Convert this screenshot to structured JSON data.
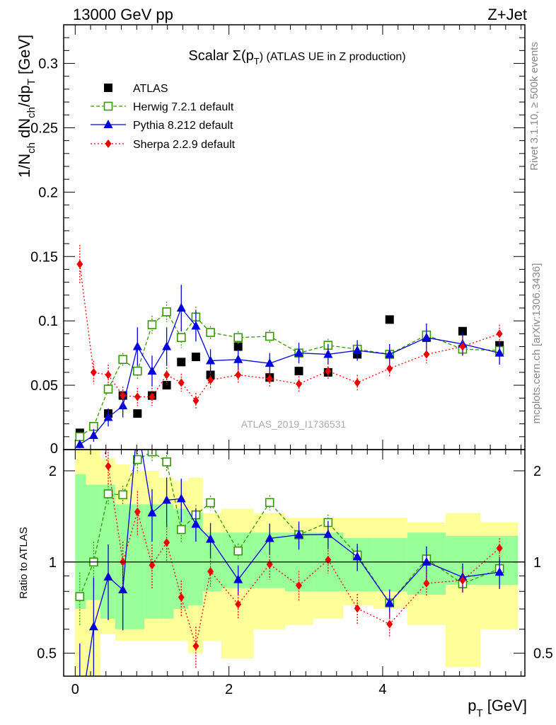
{
  "header": {
    "left": "13000 GeV pp",
    "right": "Z+Jet"
  },
  "side_labels": {
    "rivet": "Rivet 3.1.10, ≥ 500k events",
    "mcplots": "mcplots.cern.ch [arXiv:1306.3436]"
  },
  "watermark": "ATLAS_2019_I1736531",
  "colors": {
    "atlas": "#000000",
    "herwig": "#339900",
    "pythia": "#0000dd",
    "sherpa": "#ee0000",
    "band_inner": "#99ff99",
    "band_outer": "#ffff99"
  },
  "chart_data": {
    "type": "scatter",
    "title": "Scalar Σ(p_T) (ATLAS UE in Z production)",
    "title_parts": {
      "prefix": "Scalar Σ(p",
      "sub": "T",
      "suffix": ") (ATLAS UE in Z production)"
    },
    "xlabel": "p_T [GeV]",
    "xlabel_parts": {
      "prefix": "p",
      "sub": "T",
      "suffix": " [GeV]"
    },
    "ylabel": "1/N_ch dN_ch/dp_T [GeV]",
    "ylabel_parts": [
      {
        "t": "1/N",
        "sub": false
      },
      {
        "t": "ch",
        "sub": true
      },
      {
        "t": " dN",
        "sub": false
      },
      {
        "t": "ch",
        "sub": true
      },
      {
        "t": "/dp",
        "sub": false
      },
      {
        "t": "T",
        "sub": true
      },
      {
        "t": " [GeV]",
        "sub": false
      }
    ],
    "ratio_ylabel": "Ratio to ATLAS",
    "xlim": [
      -0.15,
      5.85
    ],
    "ylim": [
      0,
      0.33
    ],
    "ratio_ylim": [
      0.42,
      2.35
    ],
    "x_major_ticks": [
      0,
      2,
      4
    ],
    "y_major_ticks": [
      0.05,
      0.1,
      0.15,
      0.2,
      0.25,
      0.3
    ],
    "y_tick_labels": [
      "0.05",
      "0.1",
      "0.15",
      "0.2",
      "0.25",
      "0.3"
    ],
    "y_zero_label": "0",
    "ratio_ticks": [
      0.5,
      1,
      2
    ],
    "ratio_tick_labels": [
      "0.5",
      "1",
      "2"
    ],
    "x": [
      0.06,
      0.24,
      0.43,
      0.62,
      0.81,
      1.0,
      1.19,
      1.38,
      1.57,
      1.76,
      2.12,
      2.53,
      2.91,
      3.29,
      3.67,
      4.09,
      4.57,
      5.04,
      5.52
    ],
    "x_edges": [
      0.0,
      0.14,
      0.33,
      0.52,
      0.71,
      0.9,
      1.09,
      1.28,
      1.47,
      1.66,
      1.9,
      2.32,
      2.73,
      3.1,
      3.49,
      3.88,
      4.32,
      4.82,
      5.27,
      5.76
    ],
    "series": [
      {
        "name": "ATLAS",
        "marker": "square",
        "values": [
          0.013,
          0.018,
          0.028,
          0.042,
          0.028,
          0.042,
          0.05,
          0.068,
          0.072,
          0.058,
          0.08,
          0.056,
          0.061,
          0.06,
          0.074,
          0.101,
          0.087,
          0.092,
          0.081
        ]
      },
      {
        "name": "Herwig 7.2.1 default",
        "marker": "open-square",
        "dash": "5,3",
        "values": [
          0.01,
          0.018,
          0.047,
          0.07,
          0.061,
          0.097,
          0.107,
          0.087,
          0.103,
          0.091,
          0.087,
          0.088,
          0.075,
          0.081,
          0.078,
          0.074,
          0.089,
          0.078,
          0.077
        ],
        "errors": [
          0.002,
          0.003,
          0.004,
          0.005,
          0.006,
          0.007,
          0.008,
          0.008,
          0.008,
          0.005,
          0.005,
          0.005,
          0.005,
          0.005,
          0.005,
          0.005,
          0.005,
          0.005,
          0.005
        ]
      },
      {
        "name": "Pythia 8.212 default",
        "marker": "triangle",
        "dash": "",
        "values": [
          0.004,
          0.011,
          0.025,
          0.034,
          0.08,
          0.061,
          0.08,
          0.11,
          0.096,
          0.069,
          0.07,
          0.067,
          0.075,
          0.074,
          0.077,
          0.074,
          0.087,
          0.082,
          0.075
        ],
        "errors": [
          0.003,
          0.005,
          0.007,
          0.009,
          0.015,
          0.012,
          0.015,
          0.018,
          0.012,
          0.009,
          0.008,
          0.008,
          0.008,
          0.008,
          0.008,
          0.008,
          0.011,
          0.009,
          0.009
        ]
      },
      {
        "name": "Sherpa 2.2.9 default",
        "marker": "diamond",
        "dash": "2,3",
        "values": [
          0.144,
          0.06,
          0.058,
          0.042,
          0.041,
          0.041,
          0.058,
          0.052,
          0.038,
          0.054,
          0.058,
          0.055,
          0.051,
          0.061,
          0.052,
          0.063,
          0.074,
          0.08,
          0.09
        ],
        "errors": [
          0.015,
          0.009,
          0.008,
          0.007,
          0.007,
          0.007,
          0.008,
          0.007,
          0.006,
          0.006,
          0.006,
          0.006,
          0.006,
          0.006,
          0.006,
          0.006,
          0.007,
          0.007,
          0.007
        ]
      }
    ],
    "ratio_band_inner": [
      [
        0.7,
        1.95
      ],
      [
        0.75,
        1.8
      ],
      [
        0.65,
        1.8
      ],
      [
        0.6,
        1.55
      ],
      [
        0.6,
        1.55
      ],
      [
        0.65,
        1.55
      ],
      [
        0.65,
        1.55
      ],
      [
        0.7,
        1.5
      ],
      [
        0.72,
        1.45
      ],
      [
        0.8,
        1.25
      ],
      [
        0.82,
        1.25
      ],
      [
        0.82,
        1.25
      ],
      [
        0.8,
        1.25
      ],
      [
        0.8,
        1.25
      ],
      [
        0.8,
        1.2
      ],
      [
        0.8,
        1.2
      ],
      [
        0.78,
        1.25
      ],
      [
        0.84,
        1.22
      ],
      [
        0.84,
        1.22
      ]
    ],
    "ratio_band_outer": [
      [
        0.42,
        2.35
      ],
      [
        0.42,
        2.35
      ],
      [
        0.58,
        2.2
      ],
      [
        0.55,
        2.1
      ],
      [
        0.55,
        2.0
      ],
      [
        0.55,
        2.0
      ],
      [
        0.55,
        1.9
      ],
      [
        0.55,
        1.85
      ],
      [
        0.5,
        1.9
      ],
      [
        0.55,
        1.45
      ],
      [
        0.48,
        1.5
      ],
      [
        0.6,
        1.45
      ],
      [
        0.62,
        1.4
      ],
      [
        0.65,
        1.4
      ],
      [
        0.72,
        1.4
      ],
      [
        0.7,
        1.4
      ],
      [
        0.62,
        1.35
      ],
      [
        0.45,
        1.45
      ],
      [
        0.6,
        1.35
      ]
    ]
  }
}
